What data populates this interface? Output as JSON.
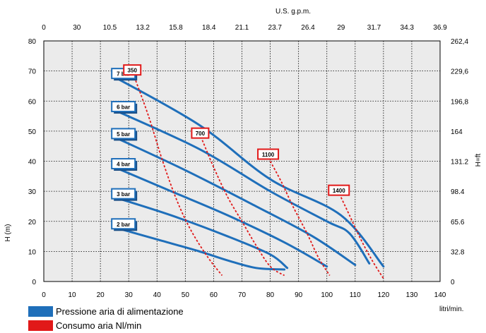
{
  "chart_data": {
    "type": "line",
    "top_axis_title": "U.S. g.p.m.",
    "bottom_axis_unit": "litri/min.",
    "left_axis_title": "H (m)",
    "right_axis_title": "H=ft",
    "xlim": [
      0,
      140
    ],
    "ylim": [
      0,
      80
    ],
    "grid": true,
    "x_ticks": [
      0,
      10,
      20,
      30,
      40,
      50,
      60,
      70,
      80,
      90,
      100,
      110,
      120,
      130,
      140
    ],
    "y_ticks": [
      0,
      10,
      20,
      30,
      40,
      50,
      60,
      70,
      80
    ],
    "top_ticks": [
      "0",
      "30",
      "10.5",
      "13.2",
      "15.8",
      "18.4",
      "21.1",
      "23.7",
      "26.4",
      "29",
      "31.7",
      "34.3",
      "36.9"
    ],
    "right_ticks": [
      "0",
      "32.8",
      "65.6",
      "98.4",
      "131.2",
      "164",
      "196,8",
      "229,6",
      "262,4"
    ],
    "pressure_series": [
      {
        "name": "2 bar",
        "points": [
          [
            25,
            18
          ],
          [
            40,
            14
          ],
          [
            55,
            10
          ],
          [
            65,
            7
          ],
          [
            75,
            4.5
          ],
          [
            85,
            4
          ]
        ]
      },
      {
        "name": "3 bar",
        "points": [
          [
            25,
            28
          ],
          [
            45,
            22
          ],
          [
            65,
            15
          ],
          [
            80,
            9
          ],
          [
            86,
            4.5
          ]
        ]
      },
      {
        "name": "4 bar",
        "points": [
          [
            25,
            38
          ],
          [
            45,
            30
          ],
          [
            65,
            22
          ],
          [
            85,
            13
          ],
          [
            100,
            5
          ]
        ]
      },
      {
        "name": "5 bar",
        "points": [
          [
            25,
            48
          ],
          [
            50,
            37
          ],
          [
            75,
            25
          ],
          [
            95,
            15
          ],
          [
            110,
            5.5
          ]
        ]
      },
      {
        "name": "6 bar",
        "points": [
          [
            25,
            57
          ],
          [
            55,
            44
          ],
          [
            80,
            30
          ],
          [
            100,
            20
          ],
          [
            108,
            16
          ],
          [
            115,
            6
          ]
        ]
      },
      {
        "name": "7 bar",
        "points": [
          [
            25,
            68
          ],
          [
            55,
            52
          ],
          [
            80,
            34
          ],
          [
            105,
            22
          ],
          [
            120,
            5
          ]
        ]
      }
    ],
    "air_series": [
      {
        "name": "350",
        "points": [
          [
            32,
            68
          ],
          [
            37,
            55
          ],
          [
            42,
            40
          ],
          [
            47,
            27
          ],
          [
            52,
            17
          ],
          [
            58,
            8
          ],
          [
            63,
            2
          ]
        ]
      },
      {
        "name": "700",
        "points": [
          [
            56,
            47
          ],
          [
            60,
            38
          ],
          [
            65,
            28
          ],
          [
            70,
            20
          ],
          [
            75,
            12
          ],
          [
            80,
            5
          ],
          [
            85,
            2
          ]
        ]
      },
      {
        "name": "1100",
        "points": [
          [
            80,
            40
          ],
          [
            84,
            33
          ],
          [
            88,
            25
          ],
          [
            93,
            16
          ],
          [
            97,
            8
          ],
          [
            101,
            2
          ]
        ]
      },
      {
        "name": "1400",
        "points": [
          [
            105,
            28
          ],
          [
            108,
            22
          ],
          [
            112,
            14
          ],
          [
            116,
            7
          ],
          [
            120,
            1
          ]
        ]
      }
    ],
    "legend": [
      {
        "label": "Pressione aria di alimentazione",
        "color": "#1f6fba"
      },
      {
        "label": "Consumo aria Nl/min",
        "color": "#e11919"
      }
    ]
  }
}
